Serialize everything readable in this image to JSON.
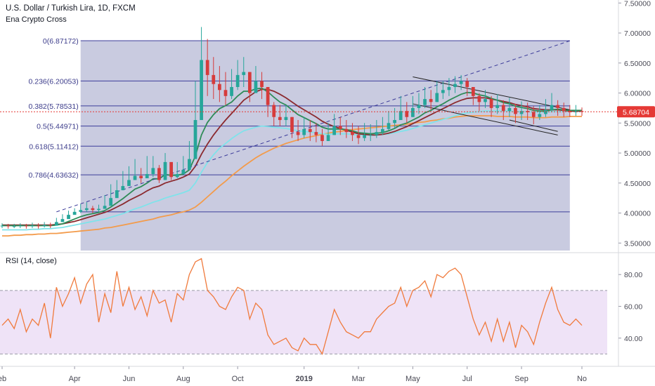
{
  "header": {
    "title": "U.S. Dollar / Turkish Lira, 1D, FXCM",
    "indicator": "Ena Crypto Cross"
  },
  "rsi": {
    "title": "RSI (14, close)",
    "upper_band": 70,
    "lower_band": 30,
    "yticks": [
      "80.00",
      "60.00",
      "40.00"
    ],
    "ytick_values": [
      80,
      60,
      40
    ],
    "range": [
      24,
      92
    ]
  },
  "colors": {
    "fib_zone_fill": "#c9cbe0",
    "fib_line": "#3c3c9a",
    "ema_fast": "#2e8b57",
    "sma_mid": "#8b2a2f",
    "ema_slow": "#7fe3ea",
    "sma_long": "#f39b4b",
    "candle_up": "#26a69a",
    "candle_down": "#d63b3b",
    "rsi_line": "#f07a3c",
    "rsi_band_fill": "#efe3f7",
    "price_tag": "#e53935"
  },
  "chart_data": [
    {
      "type": "line",
      "series_kind": "candlestick-with-moving-averages",
      "title": "U.S. Dollar / Turkish Lira, 1D, FXCM",
      "x_ticks": [
        "eb",
        "Apr",
        "Jun",
        "Aug",
        "Oct",
        "2019",
        "Mar",
        "May",
        "Jul",
        "Sep",
        "No"
      ],
      "x_tick_index": [
        0,
        12,
        21,
        30,
        39,
        50,
        59,
        68,
        77,
        86,
        96
      ],
      "y_ticks": [
        "7.50000",
        "7.00000",
        "6.50000",
        "6.00000",
        "5.50000",
        "5.00000",
        "4.50000",
        "4.00000",
        "3.50000"
      ],
      "y_tick_values": [
        7.5,
        7.0,
        6.5,
        6.0,
        5.5,
        5.0,
        4.5,
        4.0,
        3.5
      ],
      "ylim": [
        3.34,
        7.55
      ],
      "last_price": "5.68704",
      "fib_levels": [
        {
          "label": "0(6.87172)",
          "value": 6.87172
        },
        {
          "label": "0.236(6.20053)",
          "value": 6.20053
        },
        {
          "label": "0.382(5.78531)",
          "value": 5.78531
        },
        {
          "label": "0.5(5.44971)",
          "value": 5.44971
        },
        {
          "label": "0.618(5.11412)",
          "value": 5.11412
        },
        {
          "label": "0.786(4.63632)",
          "value": 4.63632
        },
        {
          "label": "",
          "value": 4.02
        }
      ],
      "fib_start_index": 13,
      "fib_end_index": 94,
      "close": [
        3.79,
        3.78,
        3.78,
        3.79,
        3.78,
        3.79,
        3.78,
        3.8,
        3.79,
        3.85,
        3.9,
        3.97,
        4.02,
        4.05,
        4.08,
        4.05,
        4.07,
        4.12,
        4.25,
        4.38,
        4.45,
        4.55,
        4.62,
        4.58,
        4.65,
        4.75,
        4.55,
        4.85,
        4.6,
        4.65,
        4.72,
        4.9,
        5.55,
        6.55,
        6.3,
        6.15,
        6.05,
        5.95,
        6.1,
        6.3,
        6.35,
        6.0,
        6.2,
        6.1,
        5.8,
        5.6,
        5.55,
        5.6,
        5.35,
        5.3,
        5.4,
        5.35,
        5.3,
        5.2,
        5.3,
        5.45,
        5.4,
        5.35,
        5.3,
        5.25,
        5.3,
        5.3,
        5.35,
        5.4,
        5.5,
        5.55,
        5.7,
        5.6,
        5.75,
        5.8,
        5.9,
        5.85,
        6.0,
        6.05,
        6.1,
        6.15,
        6.2,
        6.1,
        5.95,
        5.85,
        5.9,
        5.75,
        5.8,
        5.7,
        5.75,
        5.65,
        5.7,
        5.68,
        5.6,
        5.65,
        5.72,
        5.8,
        5.75,
        5.7,
        5.68,
        5.7,
        5.69
      ],
      "high": [
        3.83,
        3.82,
        3.82,
        3.83,
        3.82,
        3.84,
        3.83,
        3.85,
        3.84,
        3.92,
        3.98,
        4.04,
        4.08,
        4.15,
        4.18,
        4.12,
        4.14,
        4.3,
        4.48,
        4.55,
        4.7,
        4.78,
        4.9,
        4.75,
        4.95,
        4.95,
        4.8,
        5.0,
        4.78,
        4.85,
        4.95,
        5.2,
        6.2,
        7.1,
        6.9,
        6.6,
        6.45,
        6.35,
        6.4,
        6.55,
        6.6,
        6.35,
        6.45,
        6.35,
        6.05,
        5.85,
        5.8,
        5.8,
        5.6,
        5.55,
        5.6,
        5.55,
        5.5,
        5.4,
        5.5,
        5.65,
        5.6,
        5.55,
        5.5,
        5.45,
        5.5,
        5.48,
        5.55,
        5.6,
        5.7,
        5.75,
        5.95,
        5.85,
        5.95,
        6.0,
        6.1,
        6.05,
        6.2,
        6.2,
        6.25,
        6.28,
        6.3,
        6.25,
        6.1,
        6.0,
        6.05,
        5.95,
        5.98,
        5.88,
        5.92,
        5.82,
        5.86,
        5.84,
        5.78,
        5.8,
        5.9,
        6.0,
        5.88,
        5.84,
        5.8,
        5.8,
        5.76
      ],
      "low": [
        3.75,
        3.74,
        3.75,
        3.75,
        3.74,
        3.75,
        3.74,
        3.76,
        3.75,
        3.8,
        3.86,
        3.92,
        3.98,
        4.0,
        4.02,
        4.0,
        4.02,
        4.08,
        4.2,
        4.3,
        4.38,
        4.48,
        4.55,
        4.5,
        4.58,
        4.6,
        4.5,
        4.7,
        4.55,
        4.58,
        4.65,
        4.8,
        5.3,
        6.0,
        5.95,
        5.9,
        5.85,
        5.8,
        5.9,
        6.05,
        6.1,
        5.85,
        6.0,
        5.9,
        5.6,
        5.45,
        5.45,
        5.45,
        5.25,
        5.2,
        5.25,
        5.2,
        5.18,
        5.12,
        5.2,
        5.3,
        5.3,
        5.25,
        5.2,
        5.15,
        5.2,
        5.2,
        5.25,
        5.3,
        5.38,
        5.42,
        5.55,
        5.5,
        5.6,
        5.65,
        5.75,
        5.72,
        5.85,
        5.9,
        5.95,
        6.0,
        6.05,
        5.95,
        5.8,
        5.7,
        5.75,
        5.6,
        5.65,
        5.55,
        5.6,
        5.5,
        5.55,
        5.55,
        5.48,
        5.55,
        5.6,
        5.68,
        5.62,
        5.6,
        5.6,
        5.62,
        5.62
      ],
      "ema_fast": [
        3.79,
        3.79,
        3.79,
        3.79,
        3.79,
        3.79,
        3.79,
        3.79,
        3.79,
        3.8,
        3.82,
        3.86,
        3.9,
        3.94,
        3.97,
        3.99,
        4.01,
        4.04,
        4.1,
        4.17,
        4.24,
        4.32,
        4.4,
        4.44,
        4.5,
        4.57,
        4.57,
        4.64,
        4.63,
        4.63,
        4.65,
        4.72,
        4.95,
        5.3,
        5.51,
        5.64,
        5.74,
        5.79,
        5.85,
        5.95,
        6.03,
        6.03,
        6.07,
        6.08,
        6.02,
        5.93,
        5.85,
        5.8,
        5.72,
        5.64,
        5.59,
        5.54,
        5.49,
        5.43,
        5.4,
        5.4,
        5.4,
        5.39,
        5.37,
        5.34,
        5.33,
        5.32,
        5.33,
        5.34,
        5.37,
        5.41,
        5.47,
        5.5,
        5.55,
        5.6,
        5.67,
        5.71,
        5.77,
        5.82,
        5.88,
        5.93,
        5.98,
        6.01,
        6.0,
        5.97,
        5.95,
        5.91,
        5.88,
        5.84,
        5.82,
        5.78,
        5.76,
        5.74,
        5.71,
        5.7,
        5.7,
        5.72,
        5.73,
        5.72,
        5.71,
        5.71,
        5.71
      ],
      "sma_mid": [
        3.8,
        3.8,
        3.8,
        3.8,
        3.8,
        3.8,
        3.8,
        3.8,
        3.8,
        3.81,
        3.82,
        3.84,
        3.86,
        3.89,
        3.92,
        3.95,
        3.98,
        4.01,
        4.05,
        4.1,
        4.15,
        4.21,
        4.26,
        4.31,
        4.37,
        4.42,
        4.45,
        4.5,
        4.53,
        4.56,
        4.6,
        4.65,
        4.78,
        4.98,
        5.15,
        5.3,
        5.43,
        5.55,
        5.66,
        5.77,
        5.88,
        5.95,
        6.02,
        6.06,
        6.06,
        6.03,
        5.98,
        5.92,
        5.85,
        5.78,
        5.72,
        5.66,
        5.6,
        5.53,
        5.48,
        5.44,
        5.41,
        5.38,
        5.35,
        5.32,
        5.31,
        5.3,
        5.3,
        5.31,
        5.33,
        5.36,
        5.4,
        5.44,
        5.49,
        5.54,
        5.59,
        5.64,
        5.69,
        5.74,
        5.79,
        5.84,
        5.88,
        5.91,
        5.92,
        5.92,
        5.92,
        5.9,
        5.88,
        5.86,
        5.84,
        5.81,
        5.79,
        5.77,
        5.74,
        5.73,
        5.72,
        5.72,
        5.72,
        5.71,
        5.7,
        5.7,
        5.7
      ],
      "ema_slow": [
        3.72,
        3.72,
        3.72,
        3.72,
        3.72,
        3.73,
        3.73,
        3.74,
        3.74,
        3.75,
        3.76,
        3.78,
        3.8,
        3.82,
        3.84,
        3.86,
        3.88,
        3.9,
        3.93,
        3.96,
        3.99,
        4.03,
        4.07,
        4.1,
        4.14,
        4.18,
        4.21,
        4.25,
        4.28,
        4.31,
        4.34,
        4.38,
        4.5,
        4.68,
        4.84,
        4.97,
        5.08,
        5.16,
        5.24,
        5.31,
        5.37,
        5.4,
        5.43,
        5.45,
        5.44,
        5.43,
        5.42,
        5.41,
        5.39,
        5.37,
        5.36,
        5.35,
        5.34,
        5.32,
        5.31,
        5.32,
        5.32,
        5.32,
        5.31,
        5.3,
        5.3,
        5.3,
        5.3,
        5.31,
        5.32,
        5.34,
        5.36,
        5.38,
        5.41,
        5.44,
        5.47,
        5.5,
        5.53,
        5.56,
        5.59,
        5.62,
        5.65,
        5.67,
        5.68,
        5.69,
        5.7,
        5.7,
        5.7,
        5.7,
        5.7,
        5.69,
        5.69,
        5.69,
        5.68,
        5.68,
        5.68,
        5.69,
        5.69,
        5.69,
        5.69,
        5.69,
        5.69
      ],
      "sma_long": [
        3.62,
        3.62,
        3.63,
        3.63,
        3.64,
        3.64,
        3.65,
        3.65,
        3.66,
        3.66,
        3.67,
        3.68,
        3.69,
        3.7,
        3.71,
        3.72,
        3.73,
        3.75,
        3.76,
        3.78,
        3.8,
        3.82,
        3.84,
        3.86,
        3.88,
        3.9,
        3.93,
        3.95,
        3.97,
        4.0,
        4.02,
        4.05,
        4.1,
        4.18,
        4.27,
        4.36,
        4.45,
        4.53,
        4.62,
        4.7,
        4.78,
        4.85,
        4.92,
        4.98,
        5.03,
        5.08,
        5.12,
        5.16,
        5.19,
        5.22,
        5.25,
        5.27,
        5.29,
        5.31,
        5.33,
        5.35,
        5.36,
        5.38,
        5.39,
        5.4,
        5.41,
        5.42,
        5.43,
        5.44,
        5.45,
        5.46,
        5.47,
        5.48,
        5.5,
        5.51,
        5.52,
        5.54,
        5.55,
        5.57,
        5.58,
        5.6,
        5.61,
        5.62,
        5.62,
        5.62,
        5.62,
        5.62,
        5.61,
        5.61,
        5.61,
        5.6,
        5.6,
        5.6,
        5.59,
        5.59,
        5.59,
        5.6,
        5.6,
        5.6,
        5.61,
        5.61,
        5.61
      ],
      "trendlines": [
        {
          "name": "",
          "from": [
            9,
            4.02
          ],
          "to": [
            94,
            6.87
          ],
          "style": "dashed"
        },
        {
          "name": "",
          "from": [
            68,
            6.27
          ],
          "to": [
            94,
            5.72
          ],
          "style": "solid"
        },
        {
          "name": "",
          "from": [
            68,
            5.82
          ],
          "to": [
            92,
            5.3
          ],
          "style": "solid"
        },
        {
          "name": "",
          "from": [
            84,
            5.55
          ],
          "to": [
            92,
            5.36
          ],
          "style": "solid"
        }
      ]
    },
    {
      "type": "line",
      "title": "RSI (14, close)",
      "ylim": [
        24,
        92
      ],
      "y_ticks": [
        "80.00",
        "60.00",
        "40.00"
      ],
      "values": [
        48,
        52,
        46,
        58,
        44,
        52,
        48,
        62,
        40,
        72,
        60,
        68,
        78,
        62,
        74,
        80,
        50,
        68,
        56,
        82,
        60,
        72,
        58,
        66,
        54,
        70,
        62,
        64,
        50,
        68,
        64,
        80,
        88,
        90,
        70,
        66,
        60,
        58,
        66,
        72,
        70,
        52,
        62,
        58,
        42,
        36,
        38,
        40,
        34,
        32,
        40,
        36,
        36,
        30,
        44,
        58,
        50,
        44,
        42,
        40,
        44,
        44,
        52,
        56,
        60,
        62,
        72,
        60,
        70,
        72,
        76,
        66,
        80,
        78,
        82,
        84,
        80,
        66,
        52,
        42,
        50,
        38,
        52,
        38,
        50,
        34,
        48,
        44,
        36,
        50,
        62,
        72,
        58,
        50,
        48,
        52,
        48
      ]
    }
  ]
}
